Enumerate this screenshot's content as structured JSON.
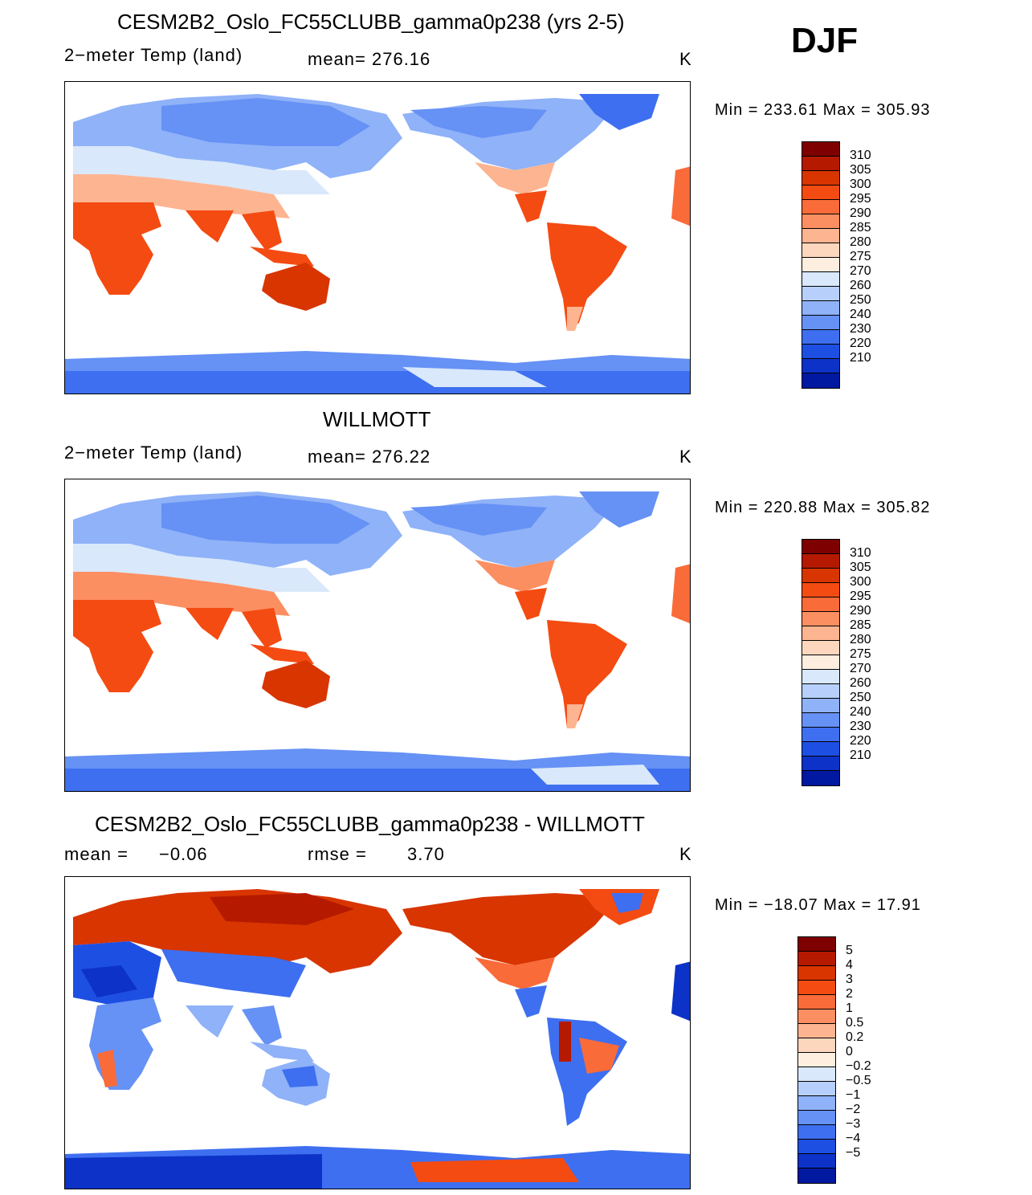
{
  "djf_label": "DJF",
  "units": "K",
  "panels": [
    {
      "title": "CESM2B2_Oslo_FC55CLUBB_gamma0p238 (yrs 2-5)",
      "variable": "2−meter Temp (land)",
      "stat": "mean= 276.16",
      "units": "K",
      "minmax": "Min  =  233.61  Max  =  305.93"
    },
    {
      "title": "WILLMOTT",
      "variable": "2−meter Temp (land)",
      "stat": "mean= 276.22",
      "units": "K",
      "minmax": "Min  =  220.88  Max  =  305.82"
    },
    {
      "title": "CESM2B2_Oslo_FC55CLUBB_gamma0p238 - WILLMOTT",
      "mean_label": "mean  =",
      "mean_value": "−0.06",
      "rmse_label": "rmse  =",
      "rmse_value": "3.70",
      "units": "K",
      "minmax": "Min  =  −18.07  Max  =    17.91"
    }
  ],
  "colorbar_temp": {
    "labels": [
      "310",
      "305",
      "300",
      "295",
      "290",
      "285",
      "280",
      "275",
      "270",
      "260",
      "250",
      "240",
      "230",
      "220",
      "210"
    ],
    "colors": [
      "#7e0000",
      "#b51a00",
      "#d83500",
      "#f44b12",
      "#fa6b3a",
      "#fc8f62",
      "#fdb491",
      "#fdd7bd",
      "#fdeee0",
      "#d9e8fb",
      "#b6d0fb",
      "#8fb2f8",
      "#6691f5",
      "#3e6ff0",
      "#1e4fe3",
      "#0c32c8",
      "#0019a0"
    ]
  },
  "colorbar_diff": {
    "labels": [
      "5",
      "4",
      "3",
      "2",
      "1",
      "0.5",
      "0.2",
      "0",
      "−0.2",
      "−0.5",
      "−1",
      "−2",
      "−3",
      "−4",
      "−5"
    ],
    "colors": [
      "#7e0000",
      "#b51a00",
      "#d83500",
      "#f44b12",
      "#fa6b3a",
      "#fc8f62",
      "#fdb491",
      "#fdd7bd",
      "#fdeee0",
      "#d9e8fb",
      "#b6d0fb",
      "#8fb2f8",
      "#6691f5",
      "#3e6ff0",
      "#1e4fe3",
      "#0c32c8",
      "#0019a0"
    ]
  }
}
